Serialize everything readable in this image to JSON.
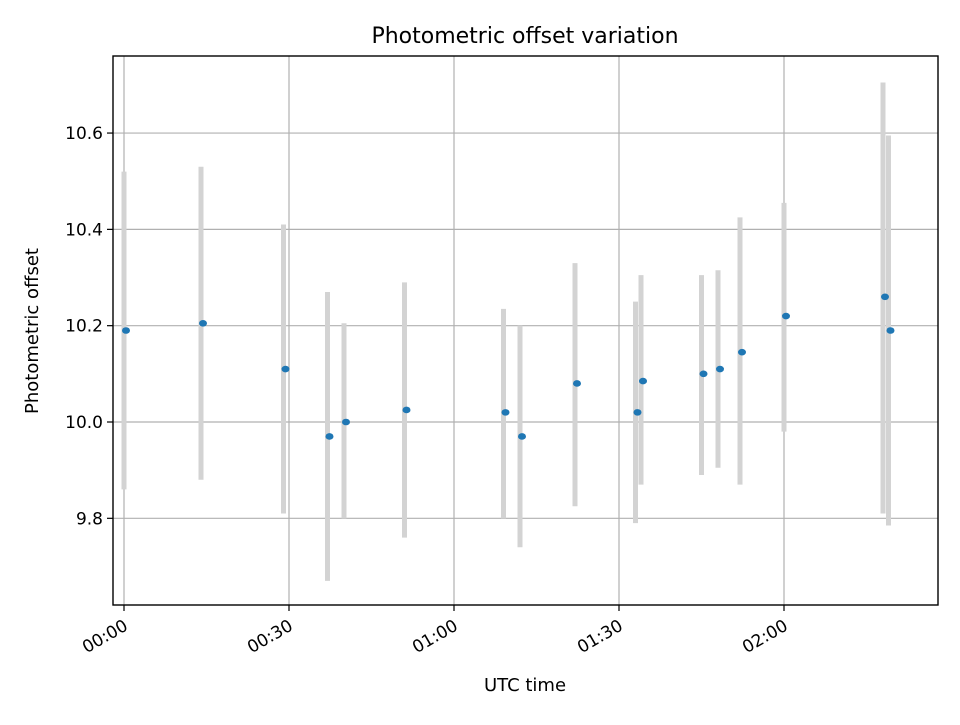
{
  "colors": {
    "point": "#1f77b4",
    "errorbar": "#d3d3d3",
    "grid": "#b0b0b0",
    "axes": "#000000",
    "background": "#ffffff"
  },
  "chart_data": {
    "type": "scatter",
    "title": "Photometric offset variation",
    "xlabel": "UTC time",
    "ylabel": "Photometric offset",
    "x_is_time": true,
    "xlim": [
      "-00:02",
      "02:28"
    ],
    "ylim": [
      9.62,
      10.76
    ],
    "xticks": [
      "00:00",
      "00:30",
      "01:00",
      "01:30",
      "02:00"
    ],
    "yticks": [
      9.8,
      10.0,
      10.2,
      10.4,
      10.6
    ],
    "ytick_labels": [
      "9.8",
      "10.0",
      "10.2",
      "10.4",
      "10.6"
    ],
    "x_tick_rotation_deg": 30,
    "grid": true,
    "legend": "none",
    "series": [
      {
        "marker": "dot",
        "errorbars": "vertical",
        "points": [
          {
            "x": "00:00",
            "y": 10.19,
            "ylow": 9.86,
            "yhigh": 10.52
          },
          {
            "x": "00:14",
            "y": 10.205,
            "ylow": 9.88,
            "yhigh": 10.53
          },
          {
            "x": "00:29",
            "y": 10.11,
            "ylow": 9.81,
            "yhigh": 10.41
          },
          {
            "x": "00:37",
            "y": 9.97,
            "ylow": 9.67,
            "yhigh": 10.27
          },
          {
            "x": "00:40",
            "y": 10.0,
            "ylow": 9.8,
            "yhigh": 10.205
          },
          {
            "x": "00:51",
            "y": 10.025,
            "ylow": 9.76,
            "yhigh": 10.29
          },
          {
            "x": "01:09",
            "y": 10.02,
            "ylow": 9.8,
            "yhigh": 10.235
          },
          {
            "x": "01:12",
            "y": 9.97,
            "ylow": 9.74,
            "yhigh": 10.2
          },
          {
            "x": "01:22",
            "y": 10.08,
            "ylow": 9.825,
            "yhigh": 10.33
          },
          {
            "x": "01:33",
            "y": 10.02,
            "ylow": 9.79,
            "yhigh": 10.25
          },
          {
            "x": "01:34",
            "y": 10.085,
            "ylow": 9.87,
            "yhigh": 10.305
          },
          {
            "x": "01:45",
            "y": 10.1,
            "ylow": 9.89,
            "yhigh": 10.305
          },
          {
            "x": "01:48",
            "y": 10.11,
            "ylow": 9.905,
            "yhigh": 10.315
          },
          {
            "x": "01:52",
            "y": 10.145,
            "ylow": 9.87,
            "yhigh": 10.425
          },
          {
            "x": "02:00",
            "y": 10.22,
            "ylow": 9.98,
            "yhigh": 10.455
          },
          {
            "x": "02:18",
            "y": 10.26,
            "ylow": 9.81,
            "yhigh": 10.705
          },
          {
            "x": "02:19",
            "y": 10.19,
            "ylow": 9.785,
            "yhigh": 10.595
          }
        ]
      }
    ]
  }
}
